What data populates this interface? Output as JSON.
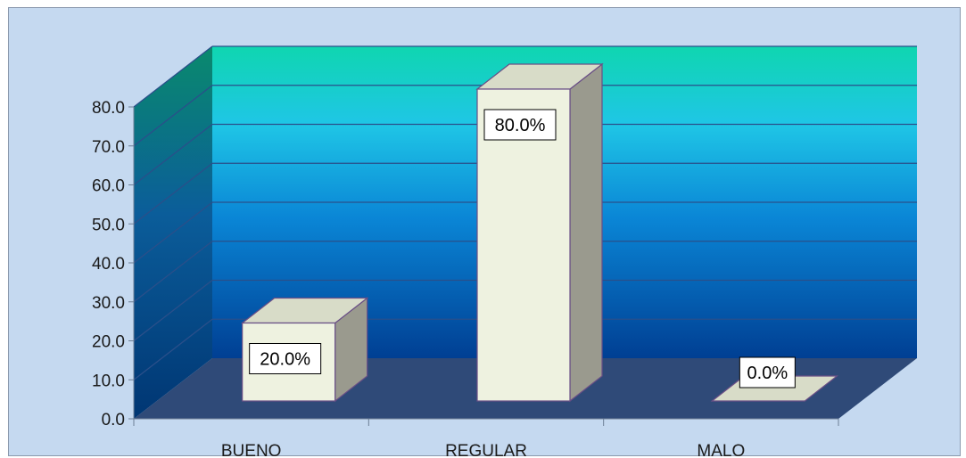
{
  "chart_data": {
    "type": "bar",
    "title": "",
    "xlabel": "",
    "ylabel": "",
    "categories": [
      "BUENO",
      "REGULAR",
      "MALO"
    ],
    "values": [
      20.0,
      80.0,
      0.0
    ],
    "data_labels": [
      "20.0%",
      "80.0%",
      "0.0%"
    ],
    "ylim": [
      0,
      80
    ],
    "yticks": [
      "0.0",
      "10.0",
      "20.0",
      "30.0",
      "40.0",
      "50.0",
      "60.0",
      "70.0",
      "80.0"
    ],
    "style": "3d-column",
    "grid": true,
    "legend": "none",
    "colors": {
      "background": "#c5d9f0",
      "floor": "#2f4a78",
      "wall_top": "#0fd6b0",
      "wall_bottom": "#003f93",
      "side_wall_top": "#0a8a6d",
      "side_wall_bottom": "#003673",
      "bar_front": "#eef2e0",
      "bar_side": "#9a9a8e",
      "bar_top": "#d8dcc8",
      "bar_outline": "#6a4f86",
      "gridline": "#2a4f8a"
    }
  }
}
